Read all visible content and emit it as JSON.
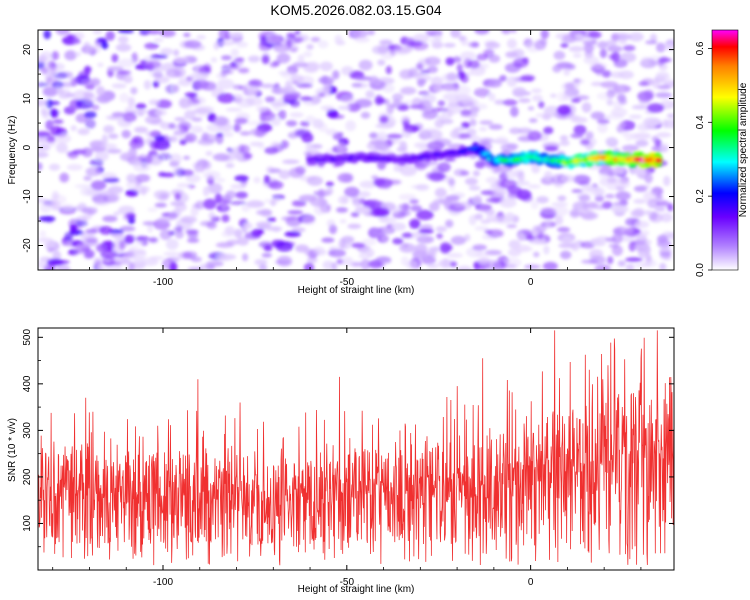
{
  "title": "KOM5.2026.082.03.15.G04",
  "chart_data": [
    {
      "type": "heatmap",
      "xlabel": "Height of straight line (km)",
      "ylabel": "Frequency (Hz)",
      "xlim": [
        -134,
        39
      ],
      "ylim": [
        -25,
        24
      ],
      "xticks": [
        -100,
        -50,
        0
      ],
      "xtick_labels": [
        "-100",
        "-50",
        "0"
      ],
      "yticks": [
        -20,
        -10,
        0,
        10,
        20
      ],
      "ytick_labels": [
        "-20",
        "-10",
        "0",
        "10",
        "20"
      ],
      "colorbar": {
        "label": "Normalized spectral amplitude",
        "range": [
          0.0,
          0.65
        ],
        "ticks": [
          0.0,
          0.2,
          0.4,
          0.6
        ],
        "tick_labels": [
          "0.0",
          "0.2",
          "0.4",
          "0.6"
        ],
        "colormap": [
          "#ff00ff",
          "#ff0000",
          "#ff8000",
          "#ffff00",
          "#00ff00",
          "#00ffff",
          "#0000ff",
          "#8000ff",
          "#ffffff"
        ]
      },
      "ridge": {
        "description": "strong signal band near -3 Hz",
        "x": [
          -60,
          -45,
          -35,
          -20,
          -15,
          -10,
          -5,
          0,
          5,
          10,
          15,
          20,
          25,
          30,
          35
        ],
        "y": [
          -2.5,
          -2.0,
          -2.5,
          -1.0,
          0.0,
          -2.5,
          -2.5,
          -2.0,
          -2.5,
          -3.0,
          -2.5,
          -2.0,
          -2.5,
          -2.5,
          -2.5
        ],
        "amplitude": [
          0.15,
          0.14,
          0.14,
          0.16,
          0.22,
          0.28,
          0.36,
          0.38,
          0.3,
          0.4,
          0.45,
          0.48,
          0.52,
          0.58,
          0.62
        ]
      }
    },
    {
      "type": "line",
      "xlabel": "Height of straight line (km)",
      "ylabel": "SNR (10 * v/v)",
      "xlim": [
        -134,
        39
      ],
      "ylim": [
        0,
        520
      ],
      "xticks": [
        -100,
        -50,
        0
      ],
      "xtick_labels": [
        "-100",
        "-50",
        "0"
      ],
      "yticks": [
        100,
        200,
        300,
        400,
        500
      ],
      "ytick_labels": [
        "100",
        "200",
        "300",
        "400",
        "500"
      ],
      "series": [
        {
          "name": "SNR",
          "color": "#f03030",
          "x": [
            -134,
            -124,
            -114,
            -104,
            -94,
            -84,
            -74,
            -64,
            -54,
            -44,
            -34,
            -24,
            -14,
            -4,
            6,
            16,
            26,
            36,
            39
          ],
          "baseline": [
            125,
            125,
            120,
            125,
            130,
            122,
            118,
            120,
            125,
            130,
            128,
            132,
            140,
            150,
            165,
            180,
            195,
            205,
            210
          ],
          "peaks": [
            {
              "x": 6.5,
              "y": 515
            },
            {
              "x": 34.5,
              "y": 515
            },
            {
              "x": -13,
              "y": 455
            },
            {
              "x": 30,
              "y": 455
            },
            {
              "x": -90.5,
              "y": 410
            },
            {
              "x": -52,
              "y": 415
            },
            {
              "x": -20,
              "y": 395
            },
            {
              "x": 21,
              "y": 440
            },
            {
              "x": -121,
              "y": 370
            },
            {
              "x": -79,
              "y": 360
            }
          ]
        }
      ]
    }
  ]
}
